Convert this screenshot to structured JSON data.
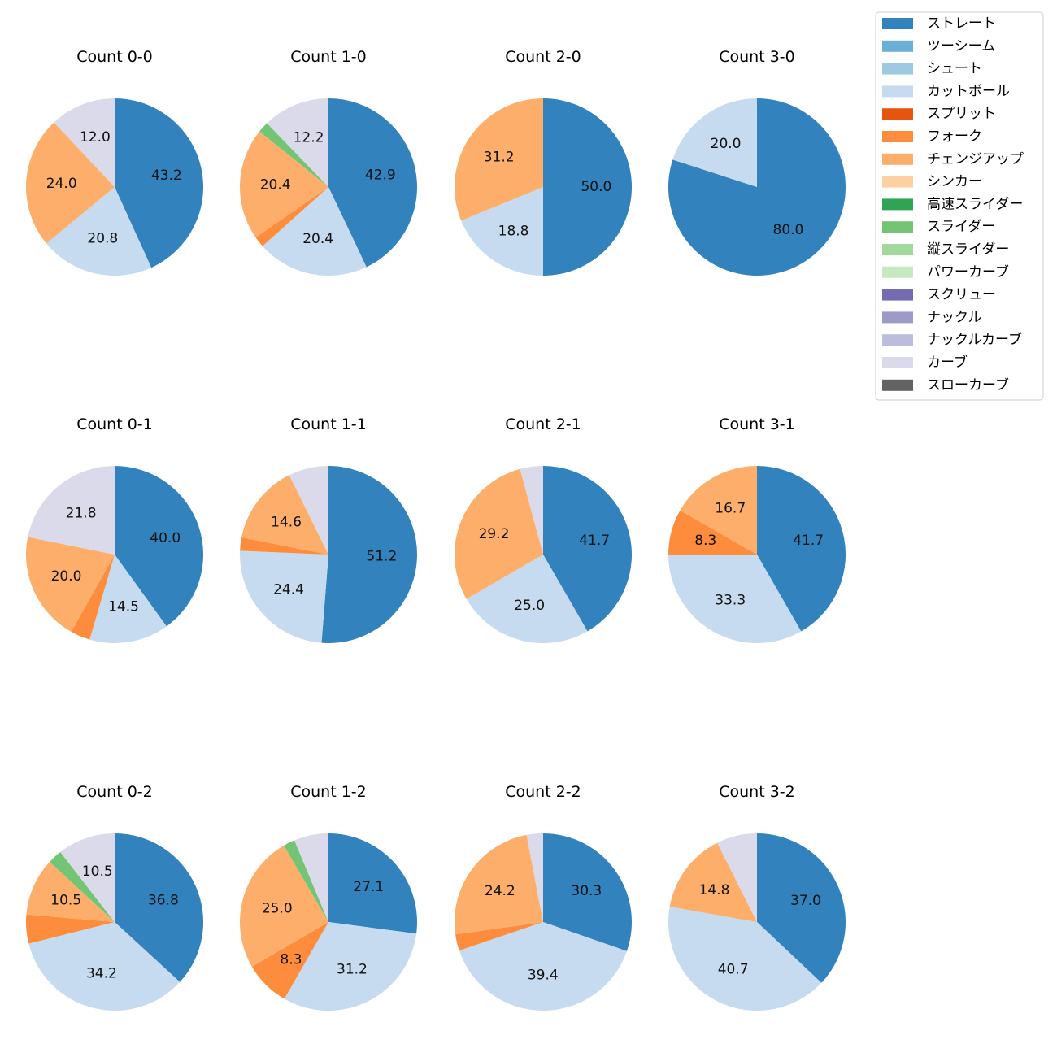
{
  "legend": {
    "entries": [
      {
        "name": "ストレート",
        "color": "#3182bd"
      },
      {
        "name": "ツーシーム",
        "color": "#6baed6"
      },
      {
        "name": "シュート",
        "color": "#9ecae1"
      },
      {
        "name": "カットボール",
        "color": "#c6dbef"
      },
      {
        "name": "スプリット",
        "color": "#e6550d"
      },
      {
        "name": "フォーク",
        "color": "#fd8d3c"
      },
      {
        "name": "チェンジアップ",
        "color": "#fdae6b"
      },
      {
        "name": "シンカー",
        "color": "#fdd0a2"
      },
      {
        "name": "高速スライダー",
        "color": "#31a354"
      },
      {
        "name": "スライダー",
        "color": "#74c476"
      },
      {
        "name": "縦スライダー",
        "color": "#a1d99b"
      },
      {
        "name": "パワーカーブ",
        "color": "#c7e9c0"
      },
      {
        "name": "スクリュー",
        "color": "#756bb1"
      },
      {
        "name": "ナックル",
        "color": "#9e9ac8"
      },
      {
        "name": "ナックルカーブ",
        "color": "#bcbddc"
      },
      {
        "name": "カーブ",
        "color": "#dadaeb"
      },
      {
        "name": "スローカーブ",
        "color": "#636363"
      }
    ]
  },
  "chart_data": [
    {
      "type": "pie",
      "title": "Count 0-0",
      "slices": [
        {
          "name": "ストレート",
          "value": 43.2,
          "label": "43.2"
        },
        {
          "name": "カットボール",
          "value": 20.8,
          "label": "20.8"
        },
        {
          "name": "チェンジアップ",
          "value": 24.0,
          "label": "24.0"
        },
        {
          "name": "カーブ",
          "value": 12.0,
          "label": "12.0"
        }
      ]
    },
    {
      "type": "pie",
      "title": "Count 1-0",
      "slices": [
        {
          "name": "ストレート",
          "value": 42.9,
          "label": "42.9"
        },
        {
          "name": "カットボール",
          "value": 20.4,
          "label": "20.4"
        },
        {
          "name": "フォーク",
          "value": 2.0,
          "label": ""
        },
        {
          "name": "チェンジアップ",
          "value": 20.4,
          "label": "20.4"
        },
        {
          "name": "スライダー",
          "value": 2.0,
          "label": ""
        },
        {
          "name": "カーブ",
          "value": 12.2,
          "label": "12.2"
        }
      ]
    },
    {
      "type": "pie",
      "title": "Count 2-0",
      "slices": [
        {
          "name": "ストレート",
          "value": 50.0,
          "label": "50.0"
        },
        {
          "name": "カットボール",
          "value": 18.8,
          "label": "18.8"
        },
        {
          "name": "チェンジアップ",
          "value": 31.2,
          "label": "31.2"
        }
      ]
    },
    {
      "type": "pie",
      "title": "Count 3-0",
      "slices": [
        {
          "name": "ストレート",
          "value": 80.0,
          "label": "80.0"
        },
        {
          "name": "カットボール",
          "value": 20.0,
          "label": "20.0"
        }
      ]
    },
    {
      "type": "pie",
      "title": "Count 0-1",
      "slices": [
        {
          "name": "ストレート",
          "value": 40.0,
          "label": "40.0"
        },
        {
          "name": "カットボール",
          "value": 14.5,
          "label": "14.5"
        },
        {
          "name": "フォーク",
          "value": 3.6,
          "label": ""
        },
        {
          "name": "チェンジアップ",
          "value": 20.0,
          "label": "20.0"
        },
        {
          "name": "カーブ",
          "value": 21.8,
          "label": "21.8"
        }
      ]
    },
    {
      "type": "pie",
      "title": "Count 1-1",
      "slices": [
        {
          "name": "ストレート",
          "value": 51.2,
          "label": "51.2"
        },
        {
          "name": "カットボール",
          "value": 24.4,
          "label": "24.4"
        },
        {
          "name": "フォーク",
          "value": 2.4,
          "label": ""
        },
        {
          "name": "チェンジアップ",
          "value": 14.6,
          "label": "14.6"
        },
        {
          "name": "カーブ",
          "value": 7.3,
          "label": ""
        }
      ]
    },
    {
      "type": "pie",
      "title": "Count 2-1",
      "slices": [
        {
          "name": "ストレート",
          "value": 41.7,
          "label": "41.7"
        },
        {
          "name": "カットボール",
          "value": 25.0,
          "label": "25.0"
        },
        {
          "name": "チェンジアップ",
          "value": 29.2,
          "label": "29.2"
        },
        {
          "name": "カーブ",
          "value": 4.2,
          "label": ""
        }
      ]
    },
    {
      "type": "pie",
      "title": "Count 3-1",
      "slices": [
        {
          "name": "ストレート",
          "value": 41.7,
          "label": "41.7"
        },
        {
          "name": "カットボール",
          "value": 33.3,
          "label": "33.3"
        },
        {
          "name": "フォーク",
          "value": 8.3,
          "label": "8.3"
        },
        {
          "name": "チェンジアップ",
          "value": 16.7,
          "label": "16.7"
        }
      ]
    },
    {
      "type": "pie",
      "title": "Count 0-2",
      "slices": [
        {
          "name": "ストレート",
          "value": 36.8,
          "label": "36.8"
        },
        {
          "name": "カットボール",
          "value": 34.2,
          "label": "34.2"
        },
        {
          "name": "フォーク",
          "value": 5.3,
          "label": ""
        },
        {
          "name": "チェンジアップ",
          "value": 10.5,
          "label": "10.5"
        },
        {
          "name": "スライダー",
          "value": 2.6,
          "label": ""
        },
        {
          "name": "カーブ",
          "value": 10.5,
          "label": "10.5"
        }
      ]
    },
    {
      "type": "pie",
      "title": "Count 1-2",
      "slices": [
        {
          "name": "ストレート",
          "value": 27.1,
          "label": "27.1"
        },
        {
          "name": "カットボール",
          "value": 31.2,
          "label": "31.2"
        },
        {
          "name": "フォーク",
          "value": 8.3,
          "label": "8.3"
        },
        {
          "name": "チェンジアップ",
          "value": 25.0,
          "label": "25.0"
        },
        {
          "name": "スライダー",
          "value": 2.1,
          "label": ""
        },
        {
          "name": "カーブ",
          "value": 6.3,
          "label": ""
        }
      ]
    },
    {
      "type": "pie",
      "title": "Count 2-2",
      "slices": [
        {
          "name": "ストレート",
          "value": 30.3,
          "label": "30.3"
        },
        {
          "name": "カットボール",
          "value": 39.4,
          "label": "39.4"
        },
        {
          "name": "フォーク",
          "value": 3.0,
          "label": ""
        },
        {
          "name": "チェンジアップ",
          "value": 24.2,
          "label": "24.2"
        },
        {
          "name": "カーブ",
          "value": 3.0,
          "label": ""
        }
      ]
    },
    {
      "type": "pie",
      "title": "Count 3-2",
      "slices": [
        {
          "name": "ストレート",
          "value": 37.0,
          "label": "37.0"
        },
        {
          "name": "カットボール",
          "value": 40.7,
          "label": "40.7"
        },
        {
          "name": "チェンジアップ",
          "value": 14.8,
          "label": "14.8"
        },
        {
          "name": "カーブ",
          "value": 7.4,
          "label": ""
        }
      ]
    }
  ]
}
